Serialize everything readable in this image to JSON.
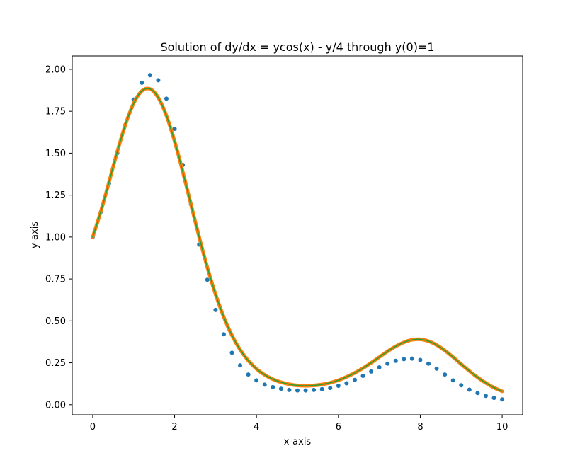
{
  "chart_data": {
    "type": "line",
    "title": "Solution of dy/dx = ycos(x) - y/4 through y(0)=1",
    "xlabel": "x-axis",
    "ylabel": "y-axis",
    "xlim": [
      -0.5,
      10.5
    ],
    "ylim": [
      -0.06,
      2.08
    ],
    "xticks": [
      0,
      2,
      4,
      6,
      8,
      10
    ],
    "xtick_labels": [
      "0",
      "2",
      "4",
      "6",
      "8",
      "10"
    ],
    "yticks": [
      0.0,
      0.25,
      0.5,
      0.75,
      1.0,
      1.25,
      1.5,
      1.75,
      2.0
    ],
    "ytick_labels": [
      "0.00",
      "0.25",
      "0.50",
      "0.75",
      "1.00",
      "1.25",
      "1.50",
      "1.75",
      "2.00"
    ],
    "grid": false,
    "colors": {
      "points": "#1f77b4",
      "outer_curve": "#ff7f0e",
      "inner_curve": "#2ca02c"
    },
    "series": [
      {
        "role": "euler-points",
        "type": "scatter",
        "x": [
          0.0,
          0.2,
          0.4,
          0.6,
          0.8,
          1.0,
          1.2,
          1.4,
          1.6,
          1.8,
          2.0,
          2.2,
          2.4,
          2.6,
          2.8,
          3.0,
          3.2,
          3.4,
          3.6,
          3.8,
          4.0,
          4.2,
          4.4,
          4.6,
          4.8,
          5.0,
          5.2,
          5.4,
          5.6,
          5.8,
          6.0,
          6.2,
          6.4,
          6.6,
          6.8,
          7.0,
          7.2,
          7.4,
          7.6,
          7.8,
          8.0,
          8.2,
          8.4,
          8.6,
          8.8,
          9.0,
          9.2,
          9.4,
          9.6,
          9.8,
          10.0
        ],
        "y": [
          1.0,
          1.15,
          1.32,
          1.5,
          1.67,
          1.82,
          1.92,
          1.965,
          1.935,
          1.825,
          1.645,
          1.43,
          1.195,
          0.955,
          0.745,
          0.565,
          0.42,
          0.31,
          0.235,
          0.18,
          0.145,
          0.12,
          0.105,
          0.095,
          0.088,
          0.085,
          0.085,
          0.088,
          0.093,
          0.1,
          0.113,
          0.128,
          0.148,
          0.172,
          0.198,
          0.223,
          0.245,
          0.262,
          0.272,
          0.275,
          0.267,
          0.245,
          0.215,
          0.18,
          0.145,
          0.116,
          0.09,
          0.07,
          0.053,
          0.041,
          0.032
        ]
      },
      {
        "role": "exact-solution-thick",
        "type": "line",
        "x": [
          0.0,
          0.2,
          0.4,
          0.6,
          0.8,
          1.0,
          1.2,
          1.4,
          1.6,
          1.8,
          2.0,
          2.2,
          2.4,
          2.6,
          2.8,
          3.0,
          3.2,
          3.4,
          3.6,
          3.8,
          4.0,
          4.2,
          4.4,
          4.6,
          4.8,
          5.0,
          5.2,
          5.4,
          5.6,
          5.8,
          6.0,
          6.2,
          6.4,
          6.6,
          6.8,
          7.0,
          7.2,
          7.4,
          7.6,
          7.8,
          8.0,
          8.2,
          8.4,
          8.6,
          8.8,
          9.0,
          9.2,
          9.4,
          9.6,
          9.8,
          10.0
        ],
        "y": [
          1.0,
          1.154,
          1.329,
          1.509,
          1.671,
          1.797,
          1.871,
          1.883,
          1.832,
          1.724,
          1.571,
          1.389,
          1.194,
          1.0,
          0.819,
          0.659,
          0.524,
          0.414,
          0.328,
          0.263,
          0.214,
          0.178,
          0.152,
          0.134,
          0.122,
          0.115,
          0.113,
          0.115,
          0.121,
          0.131,
          0.146,
          0.166,
          0.19,
          0.218,
          0.25,
          0.284,
          0.318,
          0.348,
          0.372,
          0.387,
          0.39,
          0.379,
          0.356,
          0.323,
          0.284,
          0.242,
          0.201,
          0.163,
          0.13,
          0.102,
          0.08
        ]
      },
      {
        "role": "exact-solution-thin",
        "type": "line",
        "x": [
          0.0,
          0.2,
          0.4,
          0.6,
          0.8,
          1.0,
          1.2,
          1.4,
          1.6,
          1.8,
          2.0,
          2.2,
          2.4,
          2.6,
          2.8,
          3.0,
          3.2,
          3.4,
          3.6,
          3.8,
          4.0,
          4.2,
          4.4,
          4.6,
          4.8,
          5.0,
          5.2,
          5.4,
          5.6,
          5.8,
          6.0,
          6.2,
          6.4,
          6.6,
          6.8,
          7.0,
          7.2,
          7.4,
          7.6,
          7.8,
          8.0,
          8.2,
          8.4,
          8.6,
          8.8,
          9.0,
          9.2,
          9.4,
          9.6,
          9.8,
          10.0
        ],
        "y": [
          1.0,
          1.154,
          1.329,
          1.509,
          1.671,
          1.797,
          1.871,
          1.883,
          1.832,
          1.724,
          1.571,
          1.389,
          1.194,
          1.0,
          0.819,
          0.659,
          0.524,
          0.414,
          0.328,
          0.263,
          0.214,
          0.178,
          0.152,
          0.134,
          0.122,
          0.115,
          0.113,
          0.115,
          0.121,
          0.131,
          0.146,
          0.166,
          0.19,
          0.218,
          0.25,
          0.284,
          0.318,
          0.348,
          0.372,
          0.387,
          0.39,
          0.379,
          0.356,
          0.323,
          0.284,
          0.242,
          0.201,
          0.163,
          0.13,
          0.102,
          0.08
        ]
      }
    ]
  }
}
